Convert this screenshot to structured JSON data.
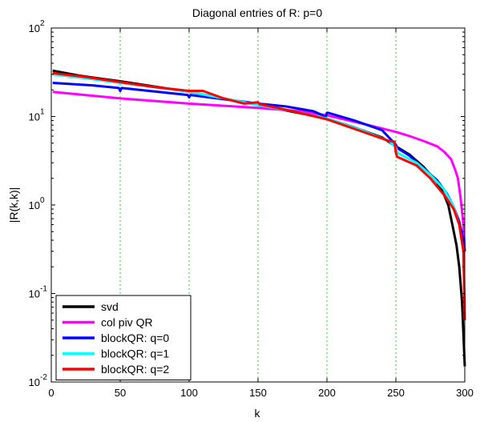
{
  "chart_data": {
    "type": "line",
    "title": "Diagonal entries of R: p=0",
    "xlabel": "k",
    "ylabel": "|R(k,k)|",
    "xlim": [
      0,
      300
    ],
    "ylim": [
      0.01,
      100
    ],
    "yscale": "log",
    "x_ticks": [
      0,
      50,
      100,
      150,
      200,
      250,
      300
    ],
    "x_tick_labels": [
      "0",
      "50",
      "100",
      "150",
      "200",
      "250",
      "300"
    ],
    "y_ticks": [
      0.01,
      0.1,
      1,
      10,
      100
    ],
    "y_tick_labels": [
      {
        "base": "10",
        "exp": "-2"
      },
      {
        "base": "10",
        "exp": "-1"
      },
      {
        "base": "10",
        "exp": "0"
      },
      {
        "base": "10",
        "exp": "1"
      },
      {
        "base": "10",
        "exp": "2"
      }
    ],
    "vertical_gridlines": [
      50,
      100,
      150,
      200,
      250
    ],
    "grid_color": "#33cc33",
    "legend_position": "bottom-left",
    "series": [
      {
        "name": "svd",
        "color": "#000000",
        "points": [
          [
            1,
            33
          ],
          [
            20,
            29
          ],
          [
            50,
            25
          ],
          [
            100,
            19
          ],
          [
            150,
            13.5
          ],
          [
            200,
            9.5
          ],
          [
            220,
            7.5
          ],
          [
            240,
            5.8
          ],
          [
            250,
            4.6
          ],
          [
            260,
            3.7
          ],
          [
            270,
            2.7
          ],
          [
            280,
            1.8
          ],
          [
            285,
            1.3
          ],
          [
            288,
            1.0
          ],
          [
            291,
            0.6
          ],
          [
            294,
            0.35
          ],
          [
            296,
            0.2
          ],
          [
            298,
            0.08
          ],
          [
            299,
            0.035
          ],
          [
            300,
            0.015
          ]
        ]
      },
      {
        "name": "col piv QR",
        "color": "#ff00ff",
        "points": [
          [
            1,
            19
          ],
          [
            50,
            16
          ],
          [
            100,
            14
          ],
          [
            150,
            12.5
          ],
          [
            180,
            11.5
          ],
          [
            200,
            10.3
          ],
          [
            230,
            8
          ],
          [
            250,
            6.7
          ],
          [
            260,
            6.0
          ],
          [
            270,
            5.3
          ],
          [
            280,
            4.6
          ],
          [
            285,
            4.0
          ],
          [
            290,
            3.3
          ],
          [
            293,
            2.5
          ],
          [
            295,
            2.0
          ],
          [
            297,
            1.2
          ],
          [
            299,
            0.6
          ],
          [
            300,
            0.3
          ]
        ]
      },
      {
        "name": "blockQR: q=0",
        "color": "#0000ff",
        "points": [
          [
            1,
            24
          ],
          [
            30,
            22.5
          ],
          [
            49,
            21
          ],
          [
            50,
            19.5
          ],
          [
            51,
            21
          ],
          [
            99,
            17.5
          ],
          [
            100,
            16.5
          ],
          [
            101,
            17.5
          ],
          [
            150,
            14
          ],
          [
            170,
            13
          ],
          [
            190,
            11.5
          ],
          [
            199,
            10
          ],
          [
            200,
            11
          ],
          [
            201,
            11
          ],
          [
            220,
            9
          ],
          [
            240,
            7
          ],
          [
            250,
            4.8
          ],
          [
            251,
            4.4
          ],
          [
            260,
            3.6
          ],
          [
            270,
            2.6
          ],
          [
            280,
            1.9
          ],
          [
            287,
            1.35
          ],
          [
            292,
            0.95
          ],
          [
            296,
            0.65
          ],
          [
            299,
            0.4
          ],
          [
            300,
            0.3
          ]
        ]
      },
      {
        "name": "blockQR: q=1",
        "color": "#00ffff",
        "points": [
          [
            1,
            30
          ],
          [
            25,
            27
          ],
          [
            50,
            24
          ],
          [
            75,
            21.5
          ],
          [
            100,
            19
          ],
          [
            125,
            16
          ],
          [
            150,
            13.5
          ],
          [
            175,
            11.5
          ],
          [
            200,
            9.5
          ],
          [
            225,
            7
          ],
          [
            245,
            5.3
          ],
          [
            250,
            4.5
          ],
          [
            251,
            3.9
          ],
          [
            265,
            3.0
          ],
          [
            275,
            2.2
          ],
          [
            285,
            1.5
          ],
          [
            292,
            0.95
          ],
          [
            296,
            0.6
          ],
          [
            299,
            0.3
          ],
          [
            300,
            0.07
          ]
        ]
      },
      {
        "name": "blockQR: q=2",
        "color": "#ff0000",
        "points": [
          [
            1,
            31
          ],
          [
            25,
            28
          ],
          [
            50,
            24.5
          ],
          [
            75,
            21.5
          ],
          [
            100,
            19.5
          ],
          [
            110,
            19.5
          ],
          [
            125,
            16
          ],
          [
            140,
            14
          ],
          [
            150,
            14.5
          ],
          [
            151,
            13.8
          ],
          [
            175,
            11.5
          ],
          [
            200,
            9.3
          ],
          [
            225,
            6.8
          ],
          [
            245,
            5.3
          ],
          [
            249,
            5.2
          ],
          [
            250,
            3.9
          ],
          [
            251,
            3.5
          ],
          [
            265,
            2.8
          ],
          [
            275,
            2.0
          ],
          [
            285,
            1.3
          ],
          [
            292,
            0.9
          ],
          [
            296,
            0.6
          ],
          [
            299,
            0.3
          ],
          [
            300,
            0.05
          ]
        ]
      }
    ]
  }
}
